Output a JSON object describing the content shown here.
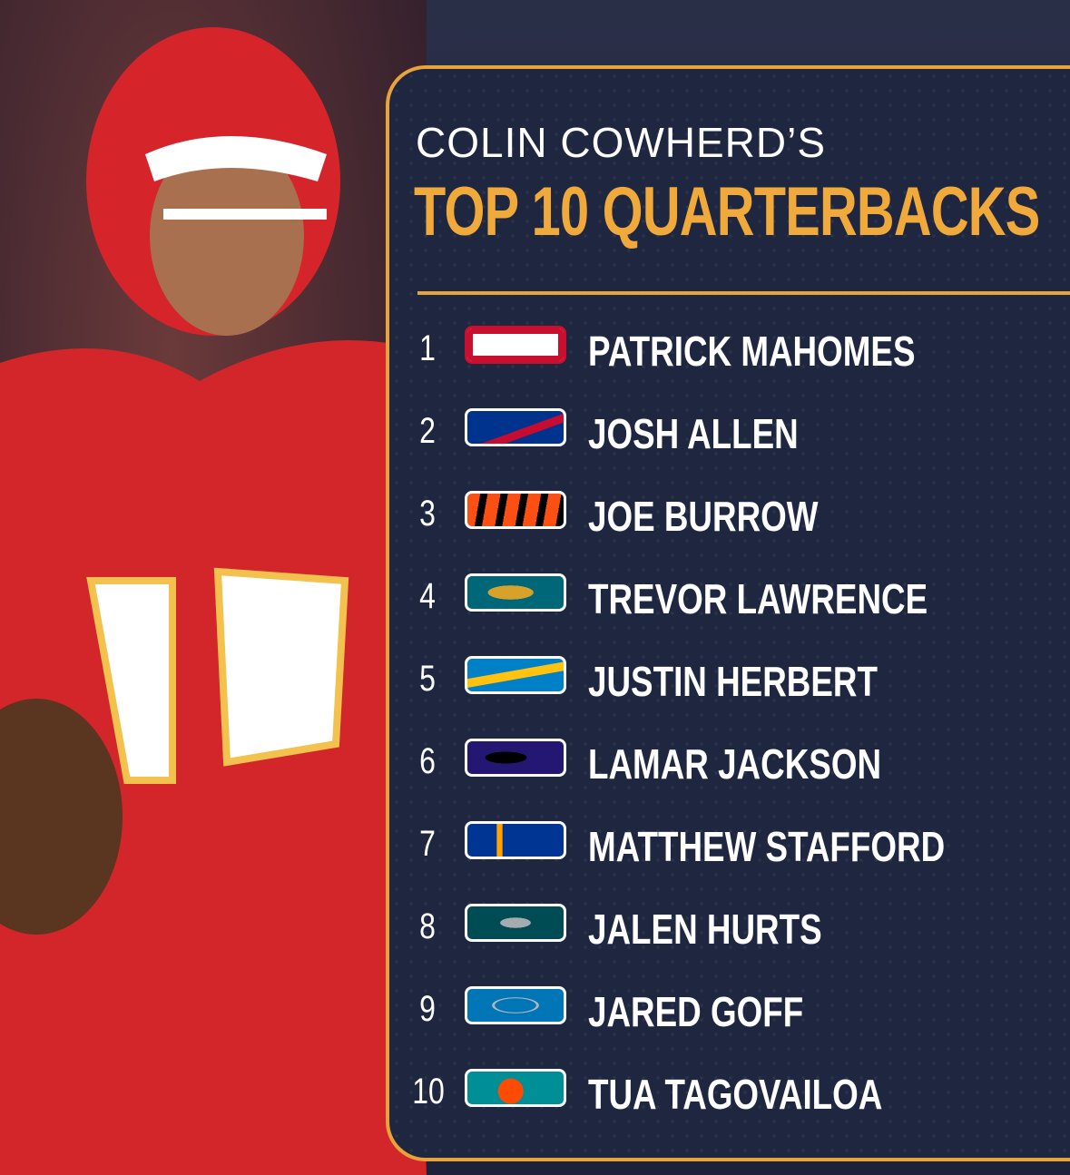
{
  "header": {
    "line1": "COLIN COWHERD’S",
    "line2": "TOP 10 QUARTERBACKS"
  },
  "list": {
    "rows": [
      {
        "rank": 1,
        "name": "PATRICK MAHOMES"
      },
      {
        "rank": 2,
        "name": "JOSH ALLEN"
      },
      {
        "rank": 3,
        "name": "JOE BURROW"
      },
      {
        "rank": 4,
        "name": "TREVOR LAWRENCE"
      },
      {
        "rank": 5,
        "name": "JUSTIN HERBERT"
      },
      {
        "rank": 6,
        "name": "LAMAR JACKSON"
      },
      {
        "rank": 7,
        "name": "MATTHEW STAFFORD"
      },
      {
        "rank": 8,
        "name": "JALEN HURTS"
      },
      {
        "rank": 9,
        "name": "JARED GOFF"
      },
      {
        "rank": 10,
        "name": "TUA TAGOVAILOA"
      }
    ]
  }
}
